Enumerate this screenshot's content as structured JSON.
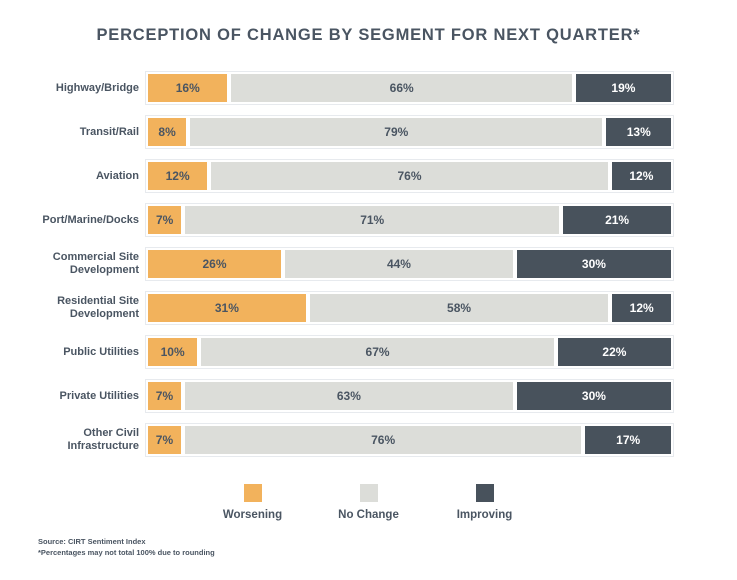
{
  "title": "PERCEPTION OF CHANGE BY SEGMENT FOR NEXT QUARTER*",
  "colors": {
    "worsening": "#f2b25c",
    "no_change": "#dcddd9",
    "improving": "#48525c",
    "text": "#4a5562",
    "bar_border": "#ffffff",
    "background": "#ffffff"
  },
  "chart_data": {
    "type": "bar",
    "subtype": "horizontal-stacked-100",
    "title": "PERCEPTION OF CHANGE BY SEGMENT FOR NEXT QUARTER*",
    "value_format": "percent",
    "legend_position": "bottom",
    "grid": false,
    "categories": [
      "Highway/Bridge",
      "Transit/Rail",
      "Aviation",
      "Port/Marine/Docks",
      "Commercial Site Development",
      "Residential Site Development",
      "Public Utilities",
      "Private Utilities",
      "Other Civil Infrastructure"
    ],
    "series": [
      {
        "name": "Worsening",
        "color": "#f2b25c",
        "label_color": "#4a5562",
        "values": [
          16,
          8,
          12,
          7,
          26,
          31,
          10,
          7,
          7
        ]
      },
      {
        "name": "No Change",
        "color": "#dcddd9",
        "label_color": "#4a5562",
        "values": [
          66,
          79,
          76,
          71,
          44,
          58,
          67,
          63,
          76
        ]
      },
      {
        "name": "Improving",
        "color": "#48525c",
        "label_color": "#ffffff",
        "values": [
          19,
          13,
          12,
          21,
          30,
          12,
          22,
          30,
          17
        ]
      }
    ]
  },
  "legend": {
    "items": [
      {
        "label": "Worsening",
        "color": "#f2b25c"
      },
      {
        "label": "No Change",
        "color": "#dcddd9"
      },
      {
        "label": "Improving",
        "color": "#48525c"
      }
    ]
  },
  "footnote": {
    "line1": "Source: CIRT Sentiment Index",
    "line2": "*Percentages may not total 100% due to rounding"
  }
}
